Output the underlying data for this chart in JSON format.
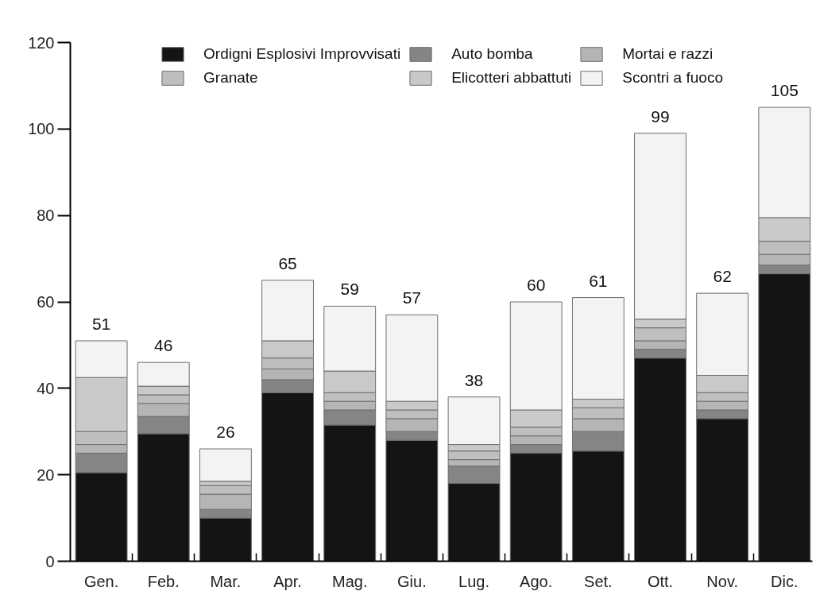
{
  "chart_data": {
    "type": "bar",
    "stacked": true,
    "categories": [
      "Gen.",
      "Feb.",
      "Mar.",
      "Apr.",
      "Mag.",
      "Giu.",
      "Lug.",
      "Ago.",
      "Set.",
      "Ott.",
      "Nov.",
      "Dic."
    ],
    "series": [
      {
        "name": "Ordigni Esplosivi Improvvisati",
        "color": "#141414",
        "values": [
          20.5,
          29.5,
          10,
          39,
          31.5,
          28,
          18,
          25,
          25.5,
          47,
          33,
          66.5
        ]
      },
      {
        "name": "Auto bomba",
        "color": "#858585",
        "values": [
          4.5,
          4,
          2,
          3,
          3.5,
          2,
          4,
          2,
          4.5,
          2,
          2,
          2
        ]
      },
      {
        "name": "Mortai e razzi",
        "color": "#b5b5b5",
        "values": [
          2,
          3,
          3.5,
          2.5,
          2,
          3,
          1.5,
          2,
          3,
          2,
          2,
          2.5
        ]
      },
      {
        "name": "Granate",
        "color": "#bfbfbf",
        "values": [
          3,
          2,
          2,
          2.5,
          2,
          2,
          2,
          2,
          2.5,
          3,
          2,
          3
        ]
      },
      {
        "name": "Elicotteri abbattuti",
        "color": "#c9c9c9",
        "values": [
          12.5,
          2,
          1,
          4,
          5,
          2,
          1.5,
          4,
          2,
          2,
          4,
          5.5
        ]
      },
      {
        "name": "Scontri a fuoco",
        "color": "#f3f3f3",
        "values": [
          8.5,
          5.5,
          7.5,
          14,
          15,
          20,
          11,
          25,
          23.5,
          43,
          19,
          25.5
        ]
      }
    ],
    "totals": [
      "51",
      "46",
      "26",
      "65",
      "59",
      "57",
      "38",
      "60",
      "61",
      "99",
      "62",
      "105"
    ],
    "ylim": [
      0,
      120
    ],
    "yticks": [
      0,
      20,
      40,
      60,
      80,
      100,
      120
    ],
    "legend": "top"
  }
}
